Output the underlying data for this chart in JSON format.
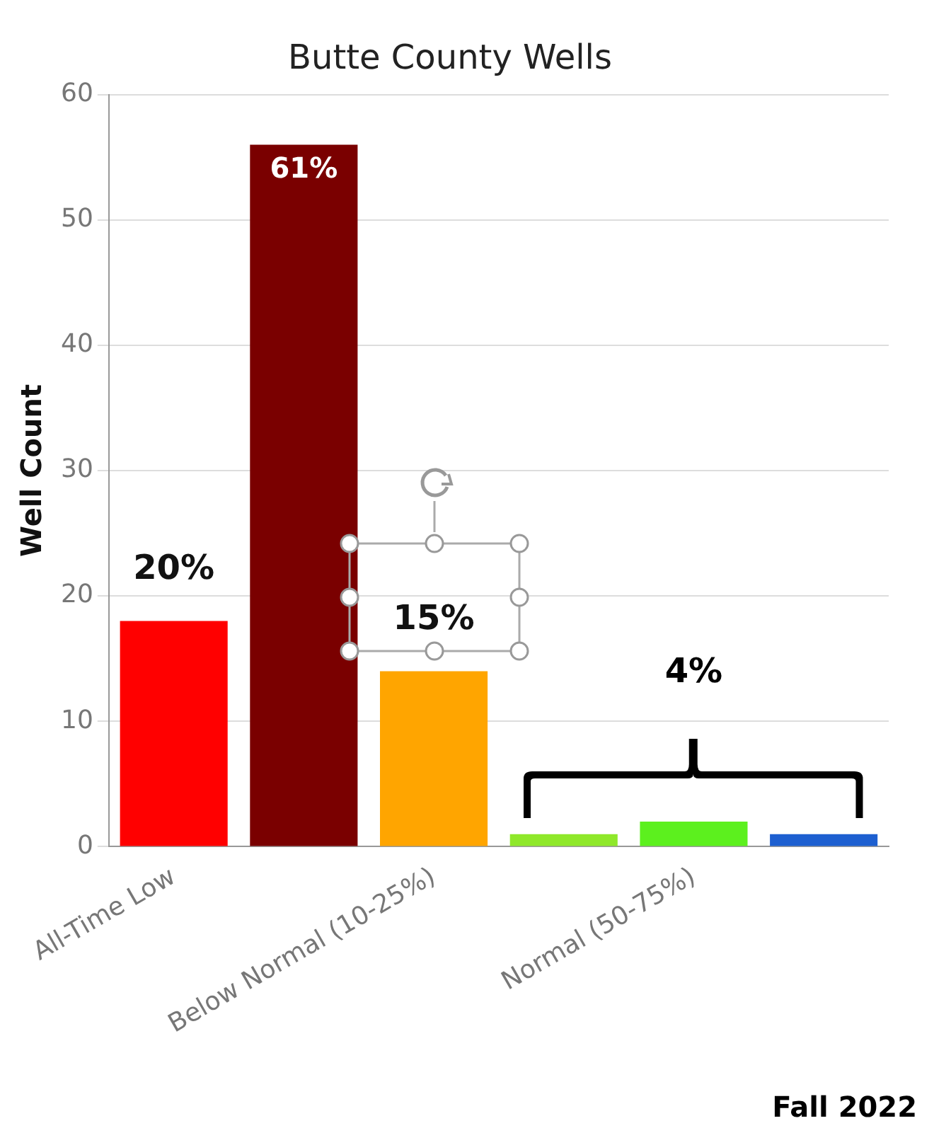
{
  "chart_data": {
    "type": "bar",
    "title": "Butte County Wells",
    "ylabel": "Well Count",
    "categories": [
      "All-Time Low",
      null,
      "Below Normal (10-25%)",
      null,
      "Normal (50-75%)",
      null
    ],
    "values": [
      18,
      56,
      14,
      1,
      2,
      1
    ],
    "colors": [
      "#ff0000",
      "#7a0000",
      "#ffa500",
      "#8fe82a",
      "#5cf01e",
      "#1d5fd0"
    ],
    "annotations": [
      "20%",
      "61%",
      "15%",
      "4%",
      "Fall 2022"
    ],
    "ylim": [
      0,
      60
    ],
    "yticks": [
      0,
      10,
      20,
      30,
      40,
      50,
      60
    ],
    "grid": "y"
  }
}
